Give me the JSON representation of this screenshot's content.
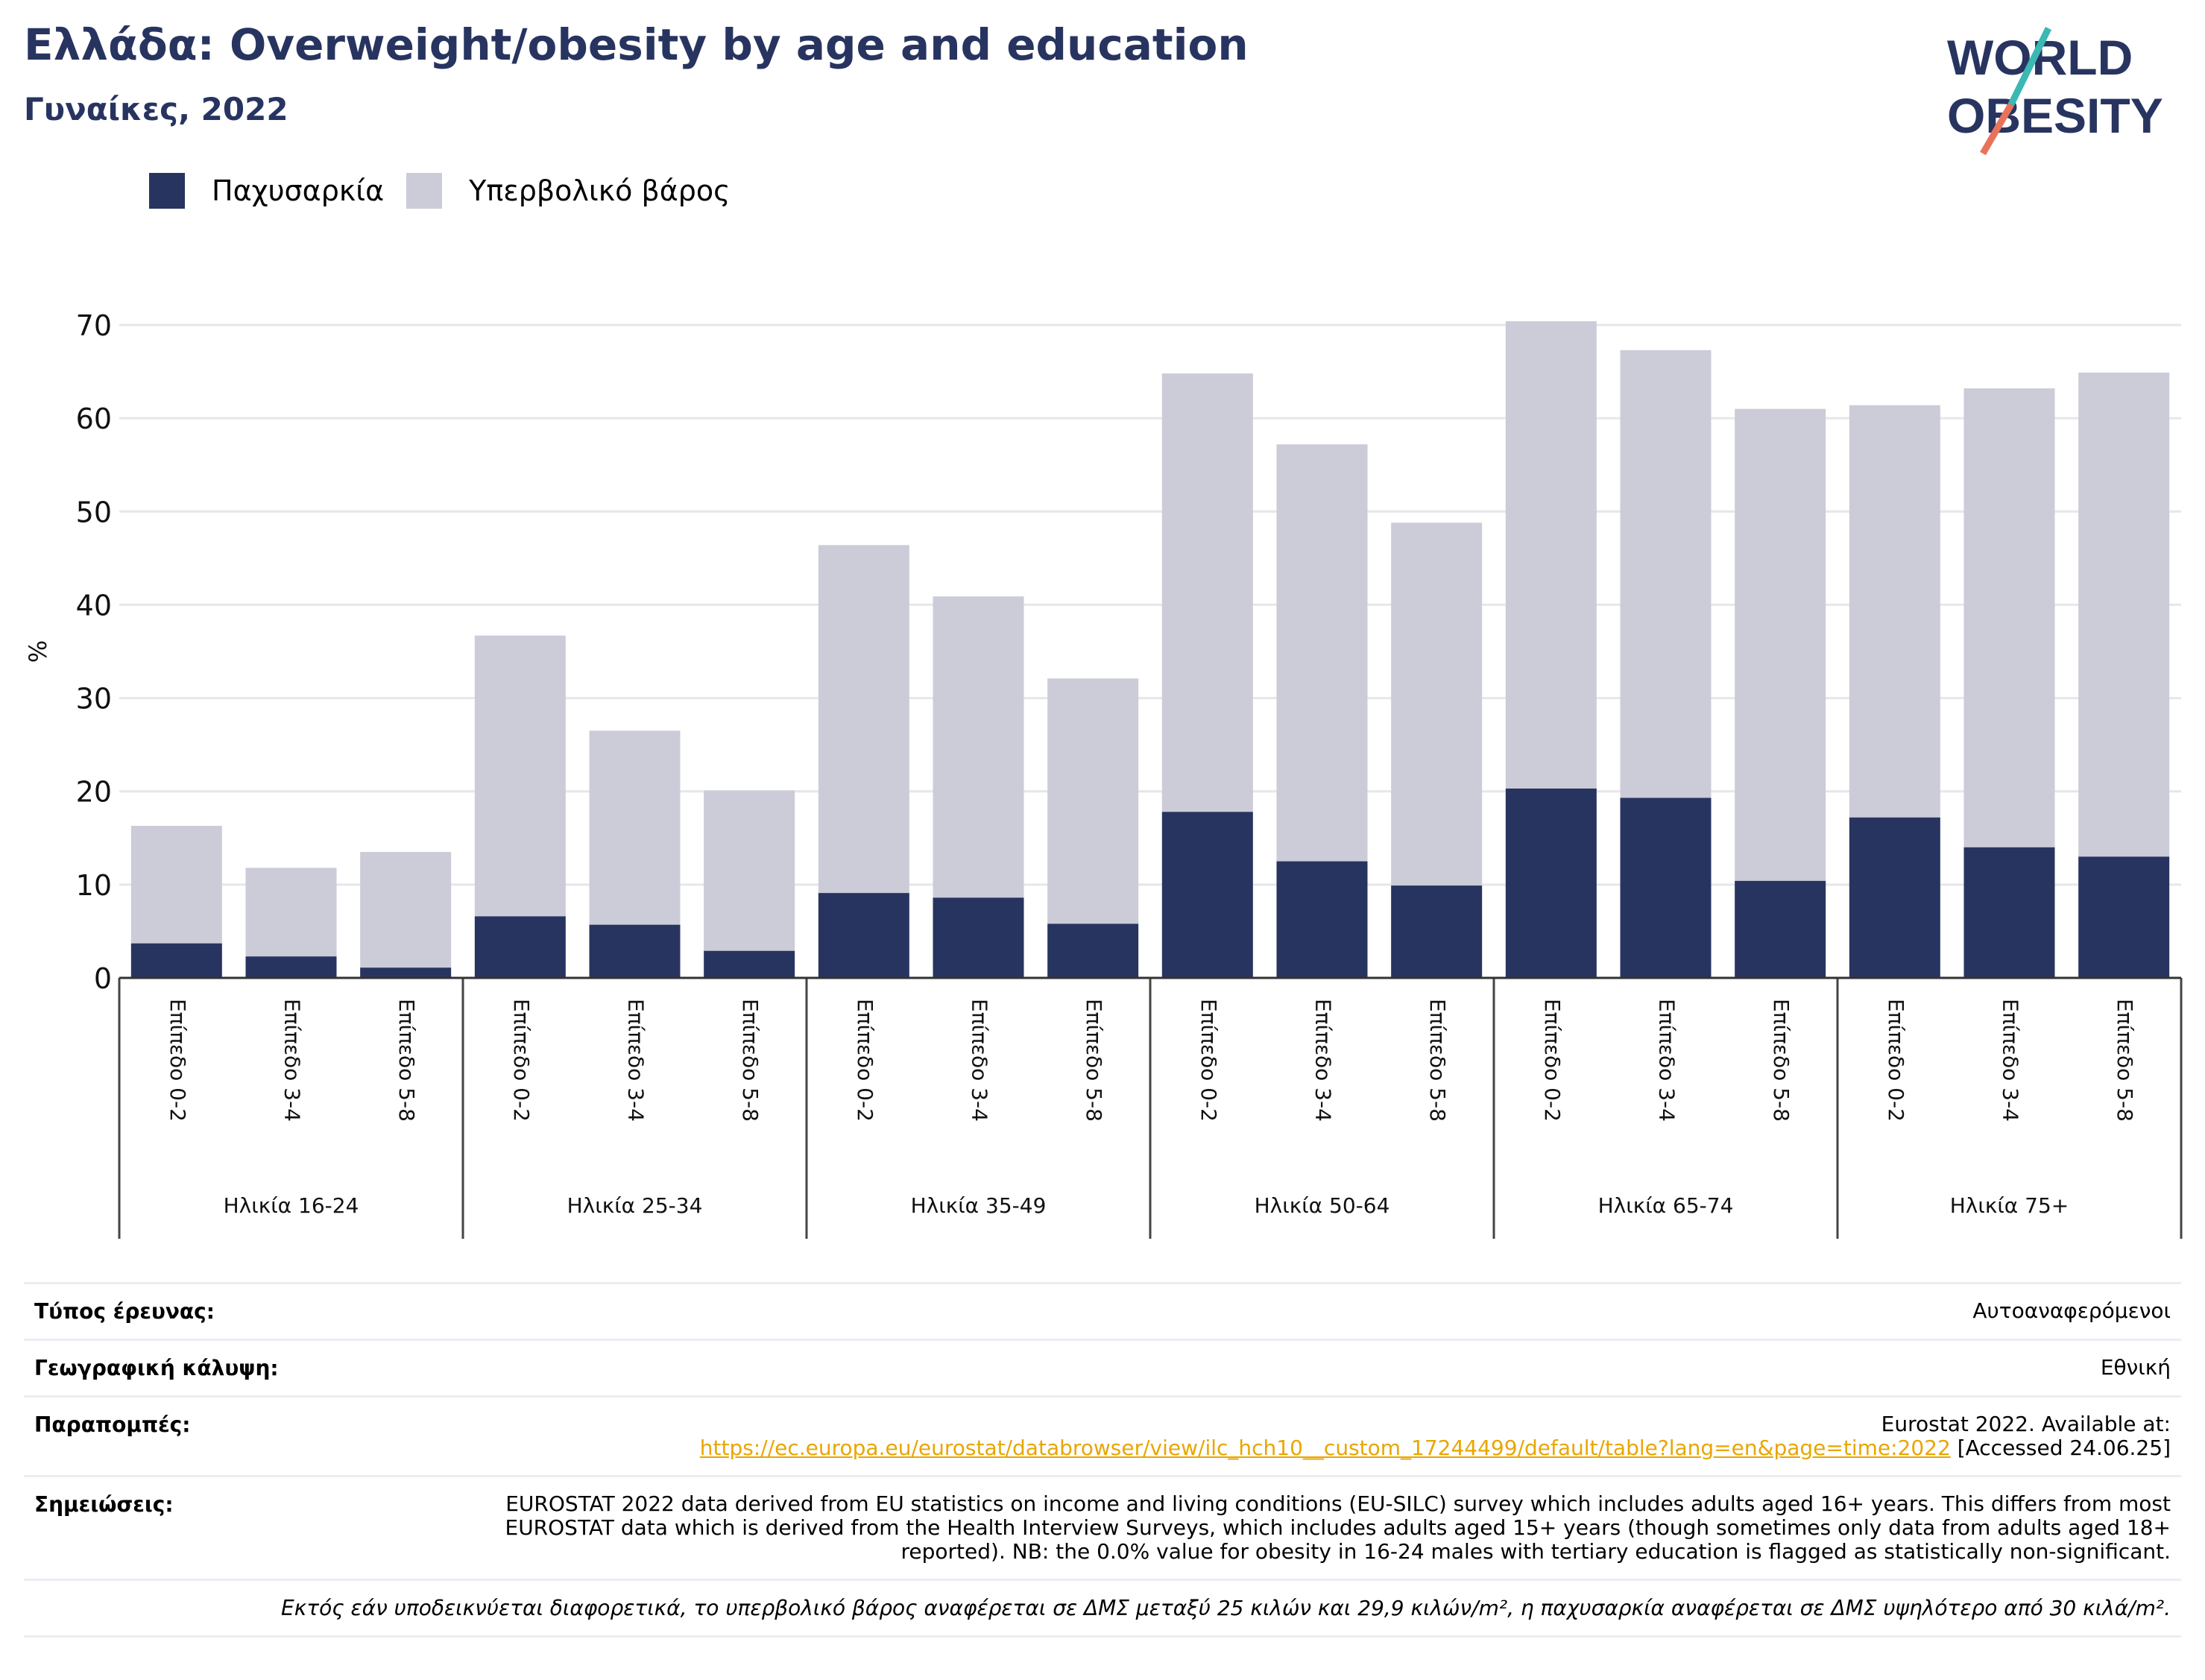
{
  "header": {
    "title": "Ελλάδα: Overweight/obesity by age and education",
    "subtitle": "Γυναίκες, 2022"
  },
  "logo": {
    "line1": "WORLD",
    "line2": "OBESITY",
    "accent_colors": [
      "#3ab8b2",
      "#e8735a"
    ]
  },
  "colors": {
    "obesity": "#283460",
    "overweight": "#cbccd8",
    "title": "#283460",
    "link": "#e8a600"
  },
  "legend": [
    {
      "label": "Παχυσαρκία",
      "color": "#283460"
    },
    {
      "label": "Υπερβολικό βάρος",
      "color": "#cbccd8"
    }
  ],
  "chart_data": {
    "type": "bar",
    "stacked": true,
    "ylabel": "%",
    "ylim": [
      0,
      70
    ],
    "yticks": [
      0,
      10,
      20,
      30,
      40,
      50,
      60,
      70
    ],
    "grid": true,
    "legend_position": "top-left",
    "groups": [
      "Ηλικία 16-24",
      "Ηλικία 25-34",
      "Ηλικία 35-49",
      "Ηλικία 50-64",
      "Ηλικία 65-74",
      "Ηλικία 75+"
    ],
    "levels": [
      "Επίπεδο 0-2",
      "Επίπεδο 3-4",
      "Επίπεδο 5-8"
    ],
    "series": [
      {
        "name": "Παχυσαρκία",
        "color": "#283460",
        "values": [
          3.7,
          2.3,
          1.1,
          6.6,
          5.7,
          2.9,
          9.1,
          8.6,
          5.8,
          17.8,
          12.5,
          9.9,
          20.3,
          19.3,
          10.4,
          17.2,
          14.0,
          13.0
        ]
      },
      {
        "name": "Υπερβολικό βάρος",
        "color": "#cbccd8",
        "values": [
          12.6,
          9.5,
          12.4,
          30.1,
          20.8,
          17.2,
          37.3,
          32.3,
          26.3,
          47.0,
          44.7,
          38.9,
          50.1,
          48.0,
          50.6,
          44.2,
          49.2,
          51.9
        ]
      }
    ]
  },
  "info": {
    "survey_type": {
      "label": "Τύπος έρευνας:",
      "value": "Αυτοαναφερόμενοι"
    },
    "coverage": {
      "label": "Γεωγραφική κάλυψη:",
      "value": "Εθνική"
    },
    "references": {
      "label": "Παραπομπές:",
      "line1": "Eurostat 2022. Available at:",
      "link": "https://ec.europa.eu/eurostat/databrowser/view/ilc_hch10__custom_17244499/default/table?lang=en&page=time:2022",
      "accessed": " [Accessed 24.06.25]"
    },
    "notes": {
      "label": "Σημειώσεις:",
      "value": "EUROSTAT 2022 data derived from EU statistics on income and living conditions (EU-SILC) survey which includes adults aged 16+ years. This differs from most EUROSTAT data which is derived from the Health Interview Surveys, which includes adults aged 15+ years (though sometimes only data from adults aged 18+ reported). NB: the 0.0% value for obesity in 16-24 males with tertiary education is flagged as statistically non-significant."
    },
    "footnote": "Εκτός εάν υποδεικνύεται διαφορετικά, το υπερβολικό βάρος αναφέρεται σε ΔΜΣ μεταξύ 25 κιλών και 29,9 κιλών/m², η παχυσαρκία αναφέρεται σε ΔΜΣ υψηλότερο από 30 κιλά/m²."
  }
}
